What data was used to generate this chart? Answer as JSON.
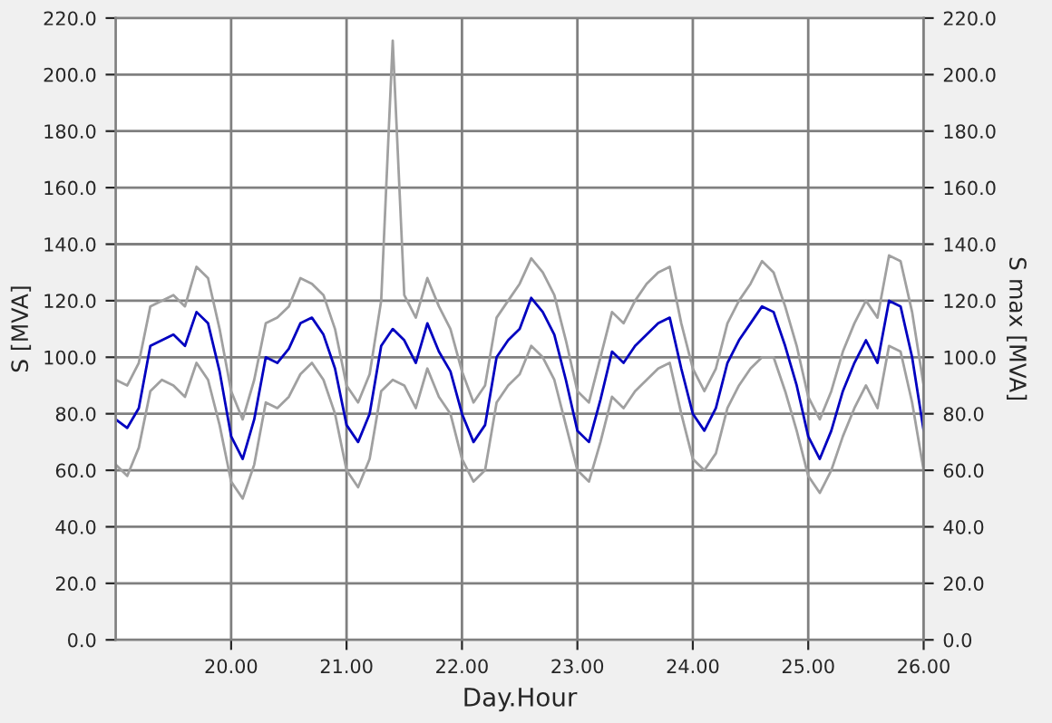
{
  "chart_data": {
    "type": "line",
    "xlabel": "Day.Hour",
    "ylabel": "S [MVA]",
    "y2label": "S max [MVA]",
    "x": [
      19.0,
      19.1,
      19.2,
      19.3,
      19.4,
      19.5,
      19.6,
      19.7,
      19.8,
      19.9,
      20.0,
      20.1,
      20.2,
      20.3,
      20.4,
      20.5,
      20.6,
      20.7,
      20.8,
      20.9,
      21.0,
      21.1,
      21.2,
      21.3,
      21.4,
      21.5,
      21.6,
      21.7,
      21.8,
      21.9,
      22.0,
      22.1,
      22.2,
      22.3,
      22.4,
      22.5,
      22.6,
      22.7,
      22.8,
      22.9,
      23.0,
      23.1,
      23.2,
      23.3,
      23.4,
      23.5,
      23.6,
      23.7,
      23.8,
      23.9,
      24.0,
      24.1,
      24.2,
      24.3,
      24.4,
      24.5,
      24.6,
      24.7,
      24.8,
      24.9,
      25.0,
      25.1,
      25.2,
      25.3,
      25.4,
      25.5,
      25.6,
      25.7,
      25.8,
      25.9,
      26.0
    ],
    "series": [
      {
        "color": "#a0a0a0",
        "values": [
          92,
          90,
          98,
          118,
          120,
          122,
          118,
          132,
          128,
          110,
          88,
          78,
          92,
          112,
          114,
          118,
          128,
          126,
          122,
          110,
          90,
          84,
          94,
          120,
          212,
          122,
          114,
          128,
          118,
          110,
          95,
          84,
          90,
          114,
          120,
          126,
          135,
          130,
          122,
          106,
          88,
          84,
          100,
          116,
          112,
          120,
          126,
          130,
          132,
          112,
          96,
          88,
          96,
          112,
          120,
          126,
          134,
          130,
          118,
          104,
          86,
          78,
          88,
          102,
          112,
          120,
          114,
          136,
          134,
          116,
          90
        ]
      },
      {
        "color": "#a0a0a0",
        "values": [
          62,
          58,
          68,
          88,
          92,
          90,
          86,
          98,
          92,
          76,
          56,
          50,
          62,
          84,
          82,
          86,
          94,
          98,
          92,
          80,
          60,
          54,
          64,
          88,
          92,
          90,
          82,
          96,
          86,
          80,
          64,
          56,
          60,
          84,
          90,
          94,
          104,
          100,
          92,
          76,
          60,
          56,
          70,
          86,
          82,
          88,
          92,
          96,
          98,
          80,
          64,
          60,
          66,
          82,
          90,
          96,
          100,
          100,
          88,
          74,
          58,
          52,
          60,
          72,
          82,
          90,
          82,
          104,
          102,
          84,
          60
        ]
      },
      {
        "color": "#0000c0",
        "values": [
          78,
          75,
          82,
          104,
          106,
          108,
          104,
          116,
          112,
          95,
          72,
          64,
          78,
          100,
          98,
          103,
          112,
          114,
          108,
          96,
          76,
          70,
          80,
          104,
          110,
          106,
          98,
          112,
          102,
          95,
          80,
          70,
          76,
          100,
          106,
          110,
          121,
          116,
          108,
          92,
          74,
          70,
          85,
          102,
          98,
          104,
          108,
          112,
          114,
          96,
          80,
          74,
          82,
          98,
          106,
          112,
          118,
          116,
          104,
          90,
          72,
          64,
          74,
          88,
          98,
          106,
          98,
          120,
          118,
          100,
          74
        ]
      }
    ],
    "xlim": [
      19.0,
      26.0
    ],
    "xticks": [
      {
        "value": 20,
        "label": "20.00"
      },
      {
        "value": 21,
        "label": "21.00"
      },
      {
        "value": 22,
        "label": "22.00"
      },
      {
        "value": 23,
        "label": "23.00"
      },
      {
        "value": 24,
        "label": "24.00"
      },
      {
        "value": 25,
        "label": "25.00"
      },
      {
        "value": 26,
        "label": "26.00"
      }
    ],
    "ylim": [
      0,
      220
    ],
    "yticks": [
      {
        "value": 0,
        "label": "0.0"
      },
      {
        "value": 20,
        "label": "20.0"
      },
      {
        "value": 40,
        "label": "40.0"
      },
      {
        "value": 60,
        "label": "60.0"
      },
      {
        "value": 80,
        "label": "80.0"
      },
      {
        "value": 100,
        "label": "100.0"
      },
      {
        "value": 120,
        "label": "120.0"
      },
      {
        "value": 140,
        "label": "140.0"
      },
      {
        "value": 160,
        "label": "160.0"
      },
      {
        "value": 180,
        "label": "180.0"
      },
      {
        "value": 200,
        "label": "200.0"
      },
      {
        "value": 220,
        "label": "220.0"
      }
    ],
    "y2lim": [
      0,
      220
    ],
    "y2ticks": [
      {
        "value": 0,
        "label": "0.0"
      },
      {
        "value": 20,
        "label": "20.0"
      },
      {
        "value": 40,
        "label": "40.0"
      },
      {
        "value": 60,
        "label": "60.0"
      },
      {
        "value": 80,
        "label": "80.0"
      },
      {
        "value": 100,
        "label": "100.0"
      },
      {
        "value": 120,
        "label": "120.0"
      },
      {
        "value": 140,
        "label": "140.0"
      },
      {
        "value": 160,
        "label": "160.0"
      },
      {
        "value": 180,
        "label": "180.0"
      },
      {
        "value": 200,
        "label": "200.0"
      },
      {
        "value": 220,
        "label": "220.0"
      }
    ],
    "grid": true,
    "marker": "none",
    "line_style": "solid"
  }
}
